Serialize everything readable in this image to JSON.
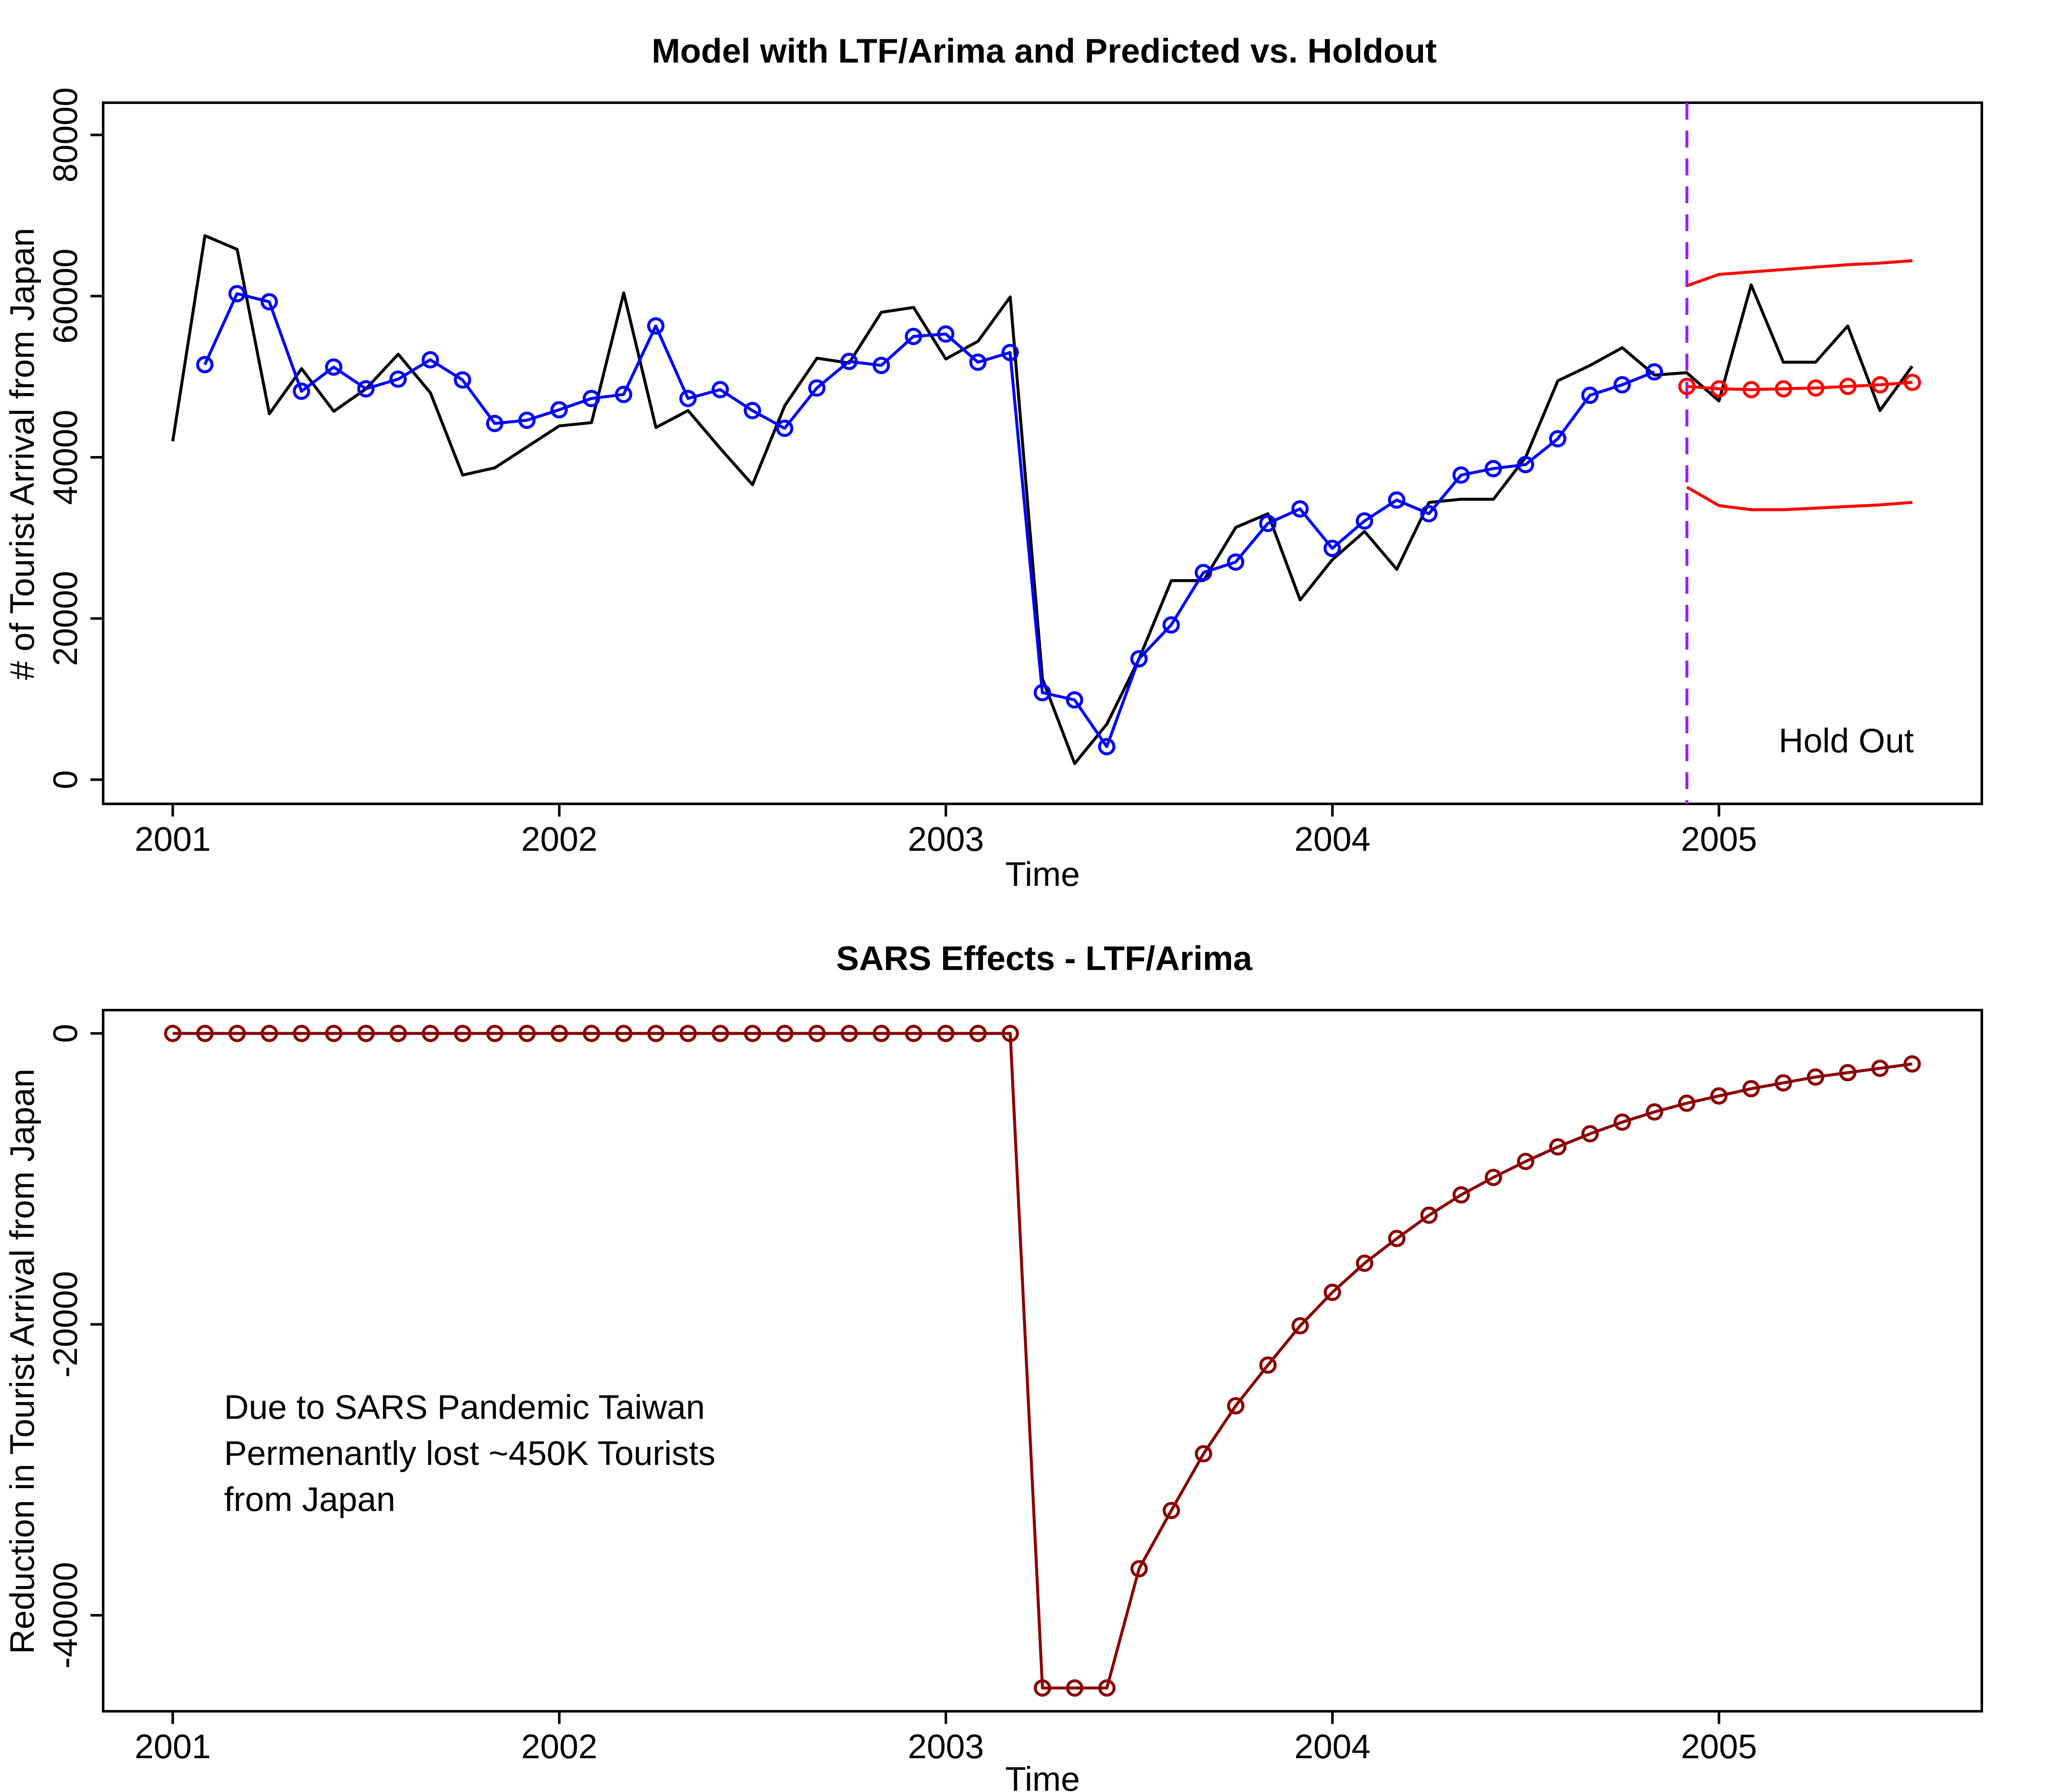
{
  "chart_data": [
    {
      "type": "line",
      "title": "Model with LTF/Arima and Predicted vs. Holdout",
      "xlabel": "Time",
      "ylabel": "# of Tourist Arrival from Japan",
      "xlim": [
        2000.82,
        2005.68
      ],
      "ylim": [
        -3000,
        84000
      ],
      "xticks": [
        2001,
        2002,
        2003,
        2004,
        2005
      ],
      "yticks": [
        0,
        20000,
        40000,
        60000,
        80000
      ],
      "legend": "none",
      "grid": false,
      "annotation": "Hold Out",
      "holdout_start": 2004.917,
      "colors": {
        "actual": "#000000",
        "fitted": "#0000ff",
        "forecast": "#ff0000",
        "holdout_line": "#a020f0"
      },
      "series": [
        {
          "name": "",
          "role": "actual",
          "x_start": 2001.0,
          "x_step": 0.08333,
          "values": [
            42000,
            67500,
            65800,
            45400,
            51000,
            45700,
            48500,
            52800,
            48000,
            37800,
            38700,
            41300,
            43900,
            44300,
            60400,
            43700,
            45800,
            41100,
            36600,
            46400,
            52300,
            51700,
            58000,
            58600,
            52200,
            54400,
            59900,
            12500,
            2000,
            6900,
            15000,
            24700,
            24700,
            31300,
            33000,
            22300,
            27300,
            30800,
            26100,
            34400,
            34800,
            34800,
            40000,
            49500,
            51400,
            53600,
            50200,
            50500,
            47000,
            61400,
            51800,
            51800,
            56300,
            45800,
            51300
          ]
        },
        {
          "name": "",
          "role": "fitted",
          "x_start": 2001.083,
          "x_step": 0.08333,
          "values": [
            51500,
            60300,
            59300,
            48200,
            51200,
            48500,
            49700,
            52100,
            49600,
            44200,
            44600,
            45900,
            47300,
            47800,
            56300,
            47300,
            48400,
            45800,
            43600,
            48600,
            51900,
            51400,
            55000,
            55300,
            51800,
            53000,
            10800,
            9900,
            4100,
            15000,
            19200,
            25700,
            27000,
            31800,
            33600,
            28700,
            32100,
            34700,
            33000,
            37800,
            38600,
            39100,
            42300,
            47700,
            49000,
            50600
          ]
        },
        {
          "name": "",
          "role": "forecast",
          "x_start": 2004.917,
          "x_step": 0.08333,
          "values": [
            48800,
            48500,
            48400,
            48500,
            48600,
            48800,
            49000,
            49300
          ]
        },
        {
          "name": "",
          "role": "forecast_upper",
          "x_start": 2004.917,
          "x_step": 0.08333,
          "values": [
            61300,
            62700,
            63000,
            63300,
            63600,
            63900,
            64100,
            64400
          ]
        },
        {
          "name": "",
          "role": "forecast_lower",
          "x_start": 2004.917,
          "x_step": 0.08333,
          "values": [
            36300,
            34000,
            33500,
            33500,
            33700,
            33900,
            34100,
            34400
          ]
        }
      ]
    },
    {
      "type": "line",
      "title": "SARS Effects - LTF/Arima",
      "xlabel": "Time",
      "ylabel": "Reduction in Tourist Arrival from Japan",
      "xlim": [
        2000.82,
        2005.68
      ],
      "ylim": [
        -46600,
        1600
      ],
      "xticks": [
        2001,
        2002,
        2003,
        2004,
        2005
      ],
      "yticks": [
        0,
        -20000,
        -40000
      ],
      "legend": "none",
      "grid": false,
      "annotation": "Due to SARS Pandemic Taiwan\nPermenantly lost ~450K Tourists\nfrom Japan",
      "colors": {
        "effect": "#8b0000"
      },
      "series": [
        {
          "name": "",
          "role": "effect",
          "x_start": 2001.0,
          "x_step": 0.08333,
          "values": [
            0,
            0,
            0,
            0,
            0,
            0,
            0,
            0,
            0,
            0,
            0,
            0,
            0,
            0,
            0,
            0,
            0,
            0,
            0,
            0,
            0,
            0,
            0,
            0,
            0,
            0,
            0,
            -45000,
            -45000,
            -45000,
            -36800,
            -32800,
            -28900,
            -25600,
            -22800,
            -20100,
            -17800,
            -15800,
            -14100,
            -12500,
            -11100,
            -9900,
            -8800,
            -7800,
            -6900,
            -6100,
            -5400,
            -4800,
            -4300,
            -3800,
            -3400,
            -3000,
            -2700,
            -2400,
            -2100
          ]
        }
      ]
    }
  ]
}
